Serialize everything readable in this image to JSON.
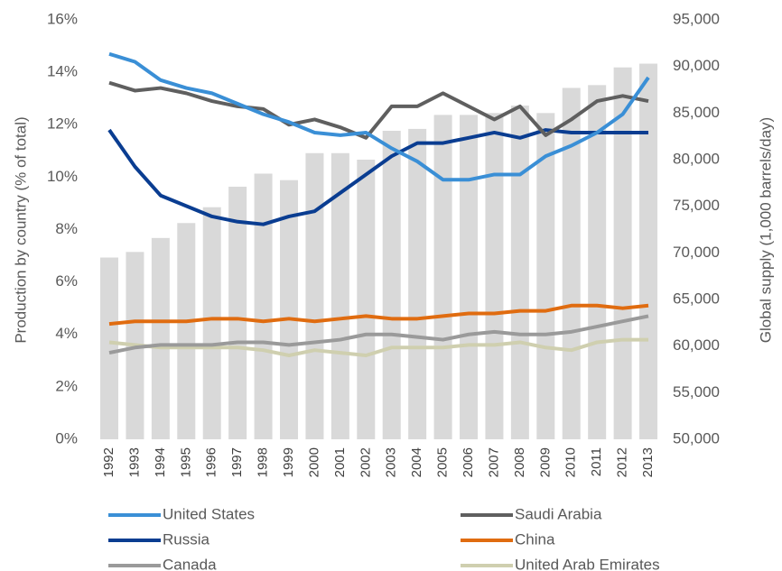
{
  "chart_data": {
    "type": "combo",
    "categories": [
      "1992",
      "1993",
      "1994",
      "1995",
      "1996",
      "1997",
      "1998",
      "1999",
      "2000",
      "2001",
      "2002",
      "2003",
      "2004",
      "2005",
      "2006",
      "2007",
      "2008",
      "2009",
      "2010",
      "2011",
      "2012",
      "2013"
    ],
    "ylabel": "Production by country (% of total)",
    "y2label": "Global supply (1,000 barrels/day)",
    "ylim": [
      0,
      16
    ],
    "yticks": [
      {
        "value": 0,
        "label": "0%"
      },
      {
        "value": 2,
        "label": "2%"
      },
      {
        "value": 4,
        "label": "4%"
      },
      {
        "value": 6,
        "label": "6%"
      },
      {
        "value": 8,
        "label": "8%"
      },
      {
        "value": 10,
        "label": "10%"
      },
      {
        "value": 12,
        "label": "12%"
      },
      {
        "value": 14,
        "label": "14%"
      },
      {
        "value": 16,
        "label": "16%"
      }
    ],
    "y2lim": [
      50000,
      95000
    ],
    "y2ticks": [
      {
        "value": 50000,
        "label": "50,000"
      },
      {
        "value": 55000,
        "label": "55,000"
      },
      {
        "value": 60000,
        "label": "60,000"
      },
      {
        "value": 65000,
        "label": "65,000"
      },
      {
        "value": 70000,
        "label": "70,000"
      },
      {
        "value": 75000,
        "label": "75,000"
      },
      {
        "value": 80000,
        "label": "80,000"
      },
      {
        "value": 85000,
        "label": "85,000"
      },
      {
        "value": 90000,
        "label": "90,000"
      },
      {
        "value": 95000,
        "label": "95,000"
      }
    ],
    "bars": {
      "axis": "y2",
      "color": "#d9d9d9",
      "values": [
        69500,
        70100,
        71600,
        73200,
        74900,
        77100,
        78500,
        77800,
        80700,
        80700,
        80000,
        83100,
        83300,
        84800,
        84800,
        85000,
        85800,
        85000,
        87700,
        88000,
        89900,
        90300
      ]
    },
    "series": [
      {
        "name": "United States",
        "color": "#3a8fd6",
        "values": [
          14.7,
          14.4,
          13.7,
          13.4,
          13.2,
          12.8,
          12.4,
          12.1,
          11.7,
          11.6,
          11.7,
          11.1,
          10.6,
          9.9,
          9.9,
          10.1,
          10.1,
          10.8,
          11.2,
          11.7,
          12.4,
          13.8
        ]
      },
      {
        "name": "Saudi Arabia",
        "color": "#5f5f5f",
        "values": [
          13.6,
          13.3,
          13.4,
          13.2,
          12.9,
          12.7,
          12.6,
          12.0,
          12.2,
          11.9,
          11.5,
          12.7,
          12.7,
          13.2,
          12.7,
          12.2,
          12.7,
          11.6,
          12.2,
          12.9,
          13.1,
          12.9
        ]
      },
      {
        "name": "Russia",
        "color": "#0a3d91",
        "values": [
          11.8,
          10.4,
          9.3,
          8.9,
          8.5,
          8.3,
          8.2,
          8.5,
          8.7,
          9.4,
          10.1,
          10.8,
          11.3,
          11.3,
          11.5,
          11.7,
          11.5,
          11.8,
          11.7,
          11.7,
          11.7,
          11.7
        ]
      },
      {
        "name": "China",
        "color": "#e06c10",
        "values": [
          4.4,
          4.5,
          4.5,
          4.5,
          4.6,
          4.6,
          4.5,
          4.6,
          4.5,
          4.6,
          4.7,
          4.6,
          4.6,
          4.7,
          4.8,
          4.8,
          4.9,
          4.9,
          5.1,
          5.1,
          5.0,
          5.1
        ]
      },
      {
        "name": "Canada",
        "color": "#9a9a9a",
        "values": [
          3.3,
          3.5,
          3.6,
          3.6,
          3.6,
          3.7,
          3.7,
          3.6,
          3.7,
          3.8,
          4.0,
          4.0,
          3.9,
          3.8,
          4.0,
          4.1,
          4.0,
          4.0,
          4.1,
          4.3,
          4.5,
          4.7
        ]
      },
      {
        "name": "United Arab Emirates",
        "color": "#cfcfaf",
        "values": [
          3.7,
          3.6,
          3.5,
          3.5,
          3.5,
          3.5,
          3.4,
          3.2,
          3.4,
          3.3,
          3.2,
          3.5,
          3.5,
          3.5,
          3.6,
          3.6,
          3.7,
          3.5,
          3.4,
          3.7,
          3.8,
          3.8
        ]
      }
    ]
  }
}
